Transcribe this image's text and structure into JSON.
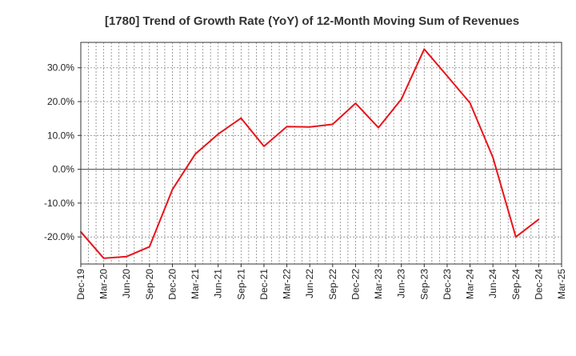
{
  "chart_data": {
    "type": "line",
    "title": "[1780]  Trend of Growth Rate (YoY) of 12-Month Moving Sum of Revenues",
    "xlabel": "",
    "ylabel": "",
    "x_tick_labels": [
      "Dec-19",
      "Mar-20",
      "Jun-20",
      "Sep-20",
      "Dec-20",
      "Mar-21",
      "Jun-21",
      "Sep-21",
      "Dec-21",
      "Mar-22",
      "Jun-22",
      "Sep-22",
      "Dec-22",
      "Mar-23",
      "Jun-23",
      "Sep-23",
      "Dec-23",
      "Mar-24",
      "Jun-24",
      "Sep-24",
      "Dec-24",
      "Mar-25"
    ],
    "y_ticks": [
      -20,
      -10,
      0,
      10,
      20,
      30
    ],
    "y_tick_labels": [
      "-20.0%",
      "-10.0%",
      "0.0%",
      "10.0%",
      "20.0%",
      "30.0%"
    ],
    "ylim": [
      -28,
      37.5
    ],
    "grid": true,
    "series": [
      {
        "color": "#e8141b",
        "x": [
          "Dec-19",
          "Mar-20",
          "Jun-20",
          "Sep-20",
          "Dec-20",
          "Mar-21",
          "Jun-21",
          "Sep-21",
          "Dec-21",
          "Mar-22",
          "Jun-22",
          "Sep-22",
          "Dec-22",
          "Mar-23",
          "Jun-23",
          "Sep-23",
          "Dec-23",
          "Mar-24",
          "Jun-24",
          "Sep-24",
          "Dec-24"
        ],
        "values": [
          -18.5,
          -26.3,
          -25.8,
          -22.9,
          -6.0,
          4.5,
          10.4,
          15.1,
          6.8,
          12.6,
          12.5,
          13.3,
          19.5,
          12.3,
          20.7,
          35.5,
          27.6,
          19.6,
          3.5,
          -20.0,
          -14.8
        ]
      }
    ]
  }
}
